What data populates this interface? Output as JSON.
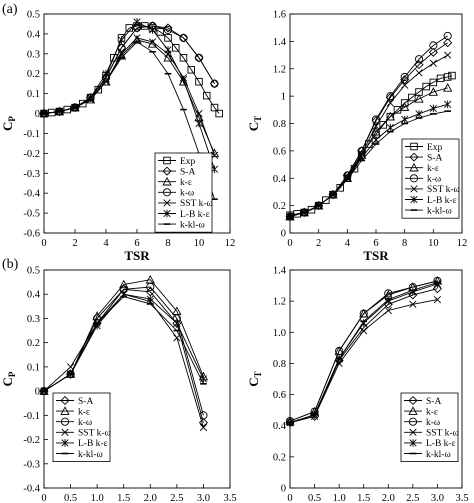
{
  "panel_labels": [
    "(a)",
    "(b)"
  ],
  "chart_data": [
    {
      "id": "a-cp",
      "panel": "(a)",
      "type": "line",
      "xlabel": "TSR",
      "ylabel": "C",
      "ylabel_sub": "P",
      "xlim": [
        0,
        12
      ],
      "ylim": [
        -0.6,
        0.5
      ],
      "xticks": [
        0,
        2,
        4,
        6,
        8,
        10,
        12
      ],
      "yticks": [
        -0.6,
        -0.5,
        -0.4,
        -0.3,
        -0.2,
        -0.1,
        0,
        0.1,
        0.2,
        0.3,
        0.4,
        0.5
      ],
      "legend_position": "bottom-right",
      "series": [
        {
          "name": "Exp",
          "marker": "square",
          "x": [
            0,
            0.5,
            1,
            1.5,
            2,
            2.5,
            3,
            3.5,
            4,
            4.5,
            5,
            5.5,
            6,
            6.5,
            7,
            7.5,
            8,
            8.5,
            9,
            9.5,
            10,
            10.5,
            11,
            11.3
          ],
          "y": [
            0,
            0.005,
            0.01,
            0.02,
            0.03,
            0.05,
            0.08,
            0.12,
            0.19,
            0.28,
            0.38,
            0.43,
            0.44,
            0.44,
            0.43,
            0.41,
            0.38,
            0.33,
            0.28,
            0.22,
            0.16,
            0.09,
            0.03,
            0.0
          ]
        },
        {
          "name": "S-A",
          "marker": "diamond",
          "x": [
            0,
            1,
            2,
            3,
            4,
            5,
            6,
            7,
            8,
            9,
            10,
            11
          ],
          "y": [
            0,
            0.01,
            0.03,
            0.08,
            0.18,
            0.33,
            0.43,
            0.44,
            0.43,
            0.38,
            0.28,
            0.15
          ]
        },
        {
          "name": "k-ε",
          "marker": "triangle",
          "x": [
            0,
            1,
            2,
            3,
            4,
            5,
            6,
            7,
            8,
            9,
            10,
            11
          ],
          "y": [
            0,
            0.01,
            0.03,
            0.07,
            0.16,
            0.29,
            0.37,
            0.35,
            0.28,
            0.16,
            -0.02,
            -0.2
          ]
        },
        {
          "name": "k-ω",
          "marker": "circle",
          "x": [
            0,
            1,
            2,
            3,
            4,
            5,
            6,
            7,
            8,
            9,
            10,
            11
          ],
          "y": [
            0,
            0.01,
            0.03,
            0.08,
            0.18,
            0.33,
            0.43,
            0.44,
            0.42,
            0.38,
            0.28,
            0.15
          ]
        },
        {
          "name": "SST k-ω",
          "marker": "x",
          "x": [
            0,
            1,
            2,
            3,
            4,
            5,
            6,
            7,
            8,
            9,
            10,
            11
          ],
          "y": [
            0,
            0.01,
            0.03,
            0.07,
            0.16,
            0.3,
            0.38,
            0.36,
            0.3,
            0.18,
            0.0,
            -0.21
          ]
        },
        {
          "name": "L-B k-ε",
          "marker": "star",
          "x": [
            0,
            1,
            2,
            3,
            4,
            5,
            6,
            7,
            8,
            9,
            10,
            11
          ],
          "y": [
            0,
            0.01,
            0.03,
            0.08,
            0.2,
            0.37,
            0.46,
            0.42,
            0.32,
            0.17,
            -0.05,
            -0.28
          ]
        },
        {
          "name": "k-kl-ω",
          "marker": "dash",
          "x": [
            0,
            1,
            2,
            3,
            4,
            5,
            6,
            7,
            8,
            9,
            10,
            11
          ],
          "y": [
            0,
            0.01,
            0.03,
            0.07,
            0.16,
            0.28,
            0.36,
            0.31,
            0.2,
            0.02,
            -0.2,
            -0.43
          ]
        }
      ]
    },
    {
      "id": "a-ct",
      "panel": "(a)",
      "type": "line",
      "xlabel": "TSR",
      "ylabel": "C",
      "ylabel_sub": "T",
      "xlim": [
        0,
        12
      ],
      "ylim": [
        0,
        1.6
      ],
      "xticks": [
        0,
        2,
        4,
        6,
        8,
        10,
        12
      ],
      "yticks": [
        0,
        0.2,
        0.4,
        0.6,
        0.8,
        1.0,
        1.2,
        1.4,
        1.6
      ],
      "ytick_labels": [
        "0",
        "0.2",
        "0.4",
        "0.6",
        "0.8",
        "1",
        "1.2",
        "1.4",
        "1.6"
      ],
      "legend_position": "bottom-right",
      "series": [
        {
          "name": "Exp",
          "marker": "square",
          "x": [
            0,
            0.5,
            1,
            1.5,
            2,
            2.5,
            3,
            3.5,
            4,
            4.5,
            5,
            5.5,
            6,
            6.5,
            7,
            7.5,
            8,
            8.5,
            9,
            9.5,
            10,
            10.5,
            11,
            11.3
          ],
          "y": [
            0.13,
            0.14,
            0.15,
            0.17,
            0.2,
            0.24,
            0.28,
            0.33,
            0.4,
            0.47,
            0.57,
            0.65,
            0.72,
            0.79,
            0.85,
            0.9,
            0.95,
            0.99,
            1.03,
            1.07,
            1.1,
            1.13,
            1.14,
            1.15
          ]
        },
        {
          "name": "S-A",
          "marker": "diamond",
          "x": [
            0,
            1,
            2,
            3,
            4,
            5,
            6,
            7,
            8,
            9,
            10,
            11
          ],
          "y": [
            0.12,
            0.15,
            0.2,
            0.28,
            0.42,
            0.6,
            0.82,
            0.99,
            1.12,
            1.23,
            1.32,
            1.39
          ]
        },
        {
          "name": "k-ε",
          "marker": "triangle",
          "x": [
            0,
            1,
            2,
            3,
            4,
            5,
            6,
            7,
            8,
            9,
            10,
            11
          ],
          "y": [
            0.12,
            0.15,
            0.2,
            0.28,
            0.4,
            0.57,
            0.74,
            0.85,
            0.92,
            0.98,
            1.03,
            1.06
          ]
        },
        {
          "name": "k-ω",
          "marker": "circle",
          "x": [
            0,
            1,
            2,
            3,
            4,
            5,
            6,
            7,
            8,
            9,
            10,
            11
          ],
          "y": [
            0.12,
            0.15,
            0.2,
            0.28,
            0.42,
            0.6,
            0.83,
            1.0,
            1.14,
            1.27,
            1.37,
            1.44
          ]
        },
        {
          "name": "SST k-ω",
          "marker": "x",
          "x": [
            0,
            1,
            2,
            3,
            4,
            5,
            6,
            7,
            8,
            9,
            10,
            11
          ],
          "y": [
            0.12,
            0.15,
            0.2,
            0.28,
            0.41,
            0.58,
            0.78,
            0.95,
            1.08,
            1.17,
            1.24,
            1.3
          ]
        },
        {
          "name": "L-B k-ε",
          "marker": "star",
          "x": [
            0,
            1,
            2,
            3,
            4,
            5,
            6,
            7,
            8,
            9,
            10,
            11
          ],
          "y": [
            0.12,
            0.15,
            0.2,
            0.28,
            0.4,
            0.55,
            0.68,
            0.77,
            0.83,
            0.87,
            0.91,
            0.94
          ]
        },
        {
          "name": "k-kl-ω",
          "marker": "dash",
          "x": [
            0,
            1,
            2,
            3,
            4,
            5,
            6,
            7,
            8,
            9,
            10,
            11
          ],
          "y": [
            0.12,
            0.15,
            0.2,
            0.28,
            0.39,
            0.53,
            0.65,
            0.74,
            0.8,
            0.84,
            0.87,
            0.89
          ]
        }
      ]
    },
    {
      "id": "b-cp",
      "panel": "(b)",
      "type": "line",
      "xlabel": "TSR",
      "ylabel": "C",
      "ylabel_sub": "P",
      "xlim": [
        0,
        3.5
      ],
      "ylim": [
        -0.4,
        0.5
      ],
      "xticks": [
        0,
        0.5,
        1,
        1.5,
        2,
        2.5,
        3,
        3.5
      ],
      "xtick_labels": [
        "0",
        "0.5",
        "1.0",
        "1.5",
        "2.0",
        "2.5",
        "3.0",
        "3.5"
      ],
      "yticks": [
        -0.4,
        -0.3,
        -0.2,
        -0.1,
        0,
        0.1,
        0.2,
        0.3,
        0.4,
        0.5
      ],
      "legend_position": "bottom-left",
      "series": [
        {
          "name": "S-A",
          "marker": "diamond",
          "x": [
            0,
            0.5,
            1,
            1.5,
            2,
            2.5,
            3
          ],
          "y": [
            0,
            0.07,
            0.28,
            0.42,
            0.41,
            0.28,
            -0.13
          ]
        },
        {
          "name": "k-ε",
          "marker": "triangle",
          "x": [
            0,
            0.5,
            1,
            1.5,
            2,
            2.5,
            3
          ],
          "y": [
            0,
            0.07,
            0.31,
            0.44,
            0.46,
            0.33,
            0.06
          ]
        },
        {
          "name": "k-ω",
          "marker": "circle",
          "x": [
            0,
            0.5,
            1,
            1.5,
            2,
            2.5,
            3
          ],
          "y": [
            0,
            0.07,
            0.3,
            0.42,
            0.43,
            0.3,
            -0.1
          ]
        },
        {
          "name": "SST k-ω",
          "marker": "x",
          "x": [
            0,
            0.5,
            1,
            1.5,
            2,
            2.5,
            3
          ],
          "y": [
            0,
            0.1,
            0.28,
            0.4,
            0.37,
            0.22,
            -0.15
          ]
        },
        {
          "name": "L-B k-ε",
          "marker": "star",
          "x": [
            0,
            0.5,
            1,
            1.5,
            2,
            2.5,
            3
          ],
          "y": [
            0,
            0.07,
            0.27,
            0.4,
            0.38,
            0.28,
            0.05
          ]
        },
        {
          "name": "k-kl-ω",
          "marker": "dash",
          "x": [
            0,
            0.5,
            1,
            1.5,
            2,
            2.5,
            3
          ],
          "y": [
            0,
            0.07,
            0.28,
            0.39,
            0.36,
            0.25,
            0.03
          ]
        }
      ]
    },
    {
      "id": "b-ct",
      "panel": "(b)",
      "type": "line",
      "xlabel": "TSR",
      "ylabel": "C",
      "ylabel_sub": "T",
      "xlim": [
        0,
        3.5
      ],
      "ylim": [
        0,
        1.4
      ],
      "xticks": [
        0,
        0.5,
        1,
        1.5,
        2,
        2.5,
        3,
        3.5
      ],
      "xtick_labels": [
        "0",
        "0.5",
        "1.0",
        "1.5",
        "2.0",
        "2.5",
        "3.0",
        "3.5"
      ],
      "yticks": [
        0,
        0.2,
        0.4,
        0.6,
        0.8,
        1.0,
        1.2,
        1.4
      ],
      "ytick_labels": [
        "0",
        "0.2",
        "0.4",
        "0.6",
        "0.8",
        "1.0",
        "1.2",
        "1.4"
      ],
      "legend_position": "bottom-right",
      "series": [
        {
          "name": "S-A",
          "marker": "diamond",
          "x": [
            0,
            0.5,
            1,
            1.5,
            2,
            2.5,
            3
          ],
          "y": [
            0.42,
            0.46,
            0.82,
            1.03,
            1.18,
            1.24,
            1.28
          ]
        },
        {
          "name": "k-ε",
          "marker": "triangle",
          "x": [
            0,
            0.5,
            1,
            1.5,
            2,
            2.5,
            3
          ],
          "y": [
            0.43,
            0.49,
            0.88,
            1.12,
            1.24,
            1.29,
            1.33
          ]
        },
        {
          "name": "k-ω",
          "marker": "circle",
          "x": [
            0,
            0.5,
            1,
            1.5,
            2,
            2.5,
            3
          ],
          "y": [
            0.43,
            0.49,
            0.88,
            1.12,
            1.25,
            1.29,
            1.33
          ]
        },
        {
          "name": "SST k-ω",
          "marker": "x",
          "x": [
            0,
            0.5,
            1,
            1.5,
            2,
            2.5,
            3
          ],
          "y": [
            0.42,
            0.46,
            0.8,
            1.01,
            1.14,
            1.18,
            1.21
          ]
        },
        {
          "name": "L-B k-ε",
          "marker": "star",
          "x": [
            0,
            0.5,
            1,
            1.5,
            2,
            2.5,
            3
          ],
          "y": [
            0.42,
            0.47,
            0.83,
            1.06,
            1.2,
            1.26,
            1.31
          ]
        },
        {
          "name": "k-kl-ω",
          "marker": "dash",
          "x": [
            0,
            0.5,
            1,
            1.5,
            2,
            2.5,
            3
          ],
          "y": [
            0.42,
            0.47,
            0.83,
            1.07,
            1.21,
            1.27,
            1.32
          ]
        }
      ]
    }
  ]
}
